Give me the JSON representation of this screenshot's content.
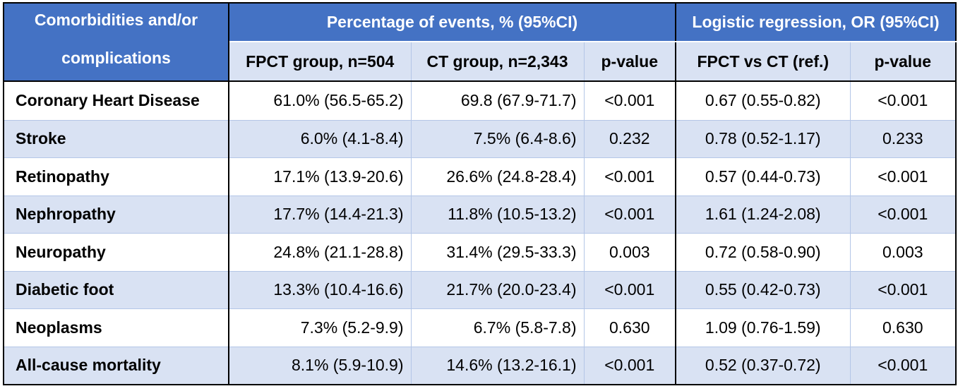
{
  "header": {
    "row_label_1": "Comorbidities and/or",
    "row_label_2": "complications",
    "group_events": "Percentage of events, % (95%CI)",
    "group_regression": "Logistic regression, OR (95%CI)",
    "col_fpct": "FPCT group, n=504",
    "col_ct": "CT group, n=2,343",
    "col_p1": "p-value",
    "col_or": "FPCT vs CT (ref.)",
    "col_p2": "p-value"
  },
  "rows": [
    {
      "label": "Coronary Heart Disease",
      "fpct": "61.0% (56.5-65.2)",
      "ct": "69.8 (67.9-71.7)",
      "p1": "<0.001",
      "or": "0.67 (0.55-0.82)",
      "p2": "<0.001"
    },
    {
      "label": "Stroke",
      "fpct": "6.0% (4.1-8.4)",
      "ct": "7.5% (6.4-8.6)",
      "p1": "0.232",
      "or": "0.78 (0.52-1.17)",
      "p2": "0.233"
    },
    {
      "label": "Retinopathy",
      "fpct": "17.1% (13.9-20.6)",
      "ct": "26.6% (24.8-28.4)",
      "p1": "<0.001",
      "or": "0.57 (0.44-0.73)",
      "p2": "<0.001"
    },
    {
      "label": "Nephropathy",
      "fpct": "17.7% (14.4-21.3)",
      "ct": "11.8% (10.5-13.2)",
      "p1": "<0.001",
      "or": "1.61 (1.24-2.08)",
      "p2": "<0.001"
    },
    {
      "label": "Neuropathy",
      "fpct": "24.8% (21.1-28.8)",
      "ct": "31.4% (29.5-33.3)",
      "p1": "0.003",
      "or": "0.72 (0.58-0.90)",
      "p2": "0.003"
    },
    {
      "label": "Diabetic foot",
      "fpct": "13.3% (10.4-16.6)",
      "ct": "21.7% (20.0-23.4)",
      "p1": "<0.001",
      "or": "0.55 (0.42-0.73)",
      "p2": "<0.001"
    },
    {
      "label": "Neoplasms",
      "fpct": "7.3% (5.2-9.9)",
      "ct": "6.7% (5.8-7.8)",
      "p1": "0.630",
      "or": "1.09 (0.76-1.59)",
      "p2": "0.630"
    },
    {
      "label": "All-cause mortality",
      "fpct": "8.1% (5.9-10.9)",
      "ct": "14.6% (13.2-16.1)",
      "p1": "<0.001",
      "or": "0.52 (0.37-0.72)",
      "p2": "<0.001"
    }
  ],
  "colors": {
    "header_fill": "#4472c4",
    "band_fill": "#d9e2f3",
    "grid_line": "#b4c6e7"
  }
}
